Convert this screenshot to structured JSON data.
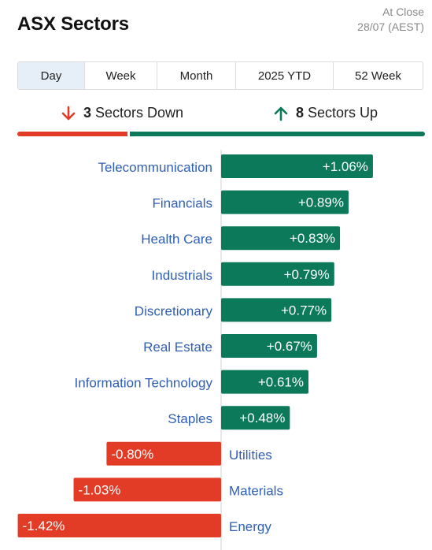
{
  "header": {
    "title": "ASX Sectors",
    "close_line1": "At Close",
    "close_line2": "28/07 (AEST)"
  },
  "tabs": [
    {
      "label": "Day",
      "active": true
    },
    {
      "label": "Week",
      "active": false
    },
    {
      "label": "Month",
      "active": false
    },
    {
      "label": "2025 YTD",
      "active": false
    },
    {
      "label": "52 Week",
      "active": false
    }
  ],
  "summary": {
    "down_count": "3",
    "down_label": "Sectors Down",
    "up_count": "8",
    "up_label": "Sectors Up",
    "down_icon": "arrow-down-icon",
    "up_icon": "arrow-up-icon"
  },
  "colors": {
    "up": "#0c7a5a",
    "down": "#e23b26",
    "label": "#2f5fb4"
  },
  "chart_data": {
    "type": "bar",
    "orientation": "horizontal",
    "categories": [
      "Telecommunication",
      "Financials",
      "Health Care",
      "Industrials",
      "Discretionary",
      "Real Estate",
      "Information Technology",
      "Staples",
      "Utilities",
      "Materials",
      "Energy"
    ],
    "values": [
      1.06,
      0.89,
      0.83,
      0.79,
      0.77,
      0.67,
      0.61,
      0.48,
      -0.8,
      -1.03,
      -1.42
    ],
    "value_labels": [
      "+1.06%",
      "+0.89%",
      "+0.83%",
      "+0.79%",
      "+0.77%",
      "+0.67%",
      "+0.61%",
      "+0.48%",
      "-0.80%",
      "-1.03%",
      "-1.42%"
    ],
    "unit": "%"
  }
}
